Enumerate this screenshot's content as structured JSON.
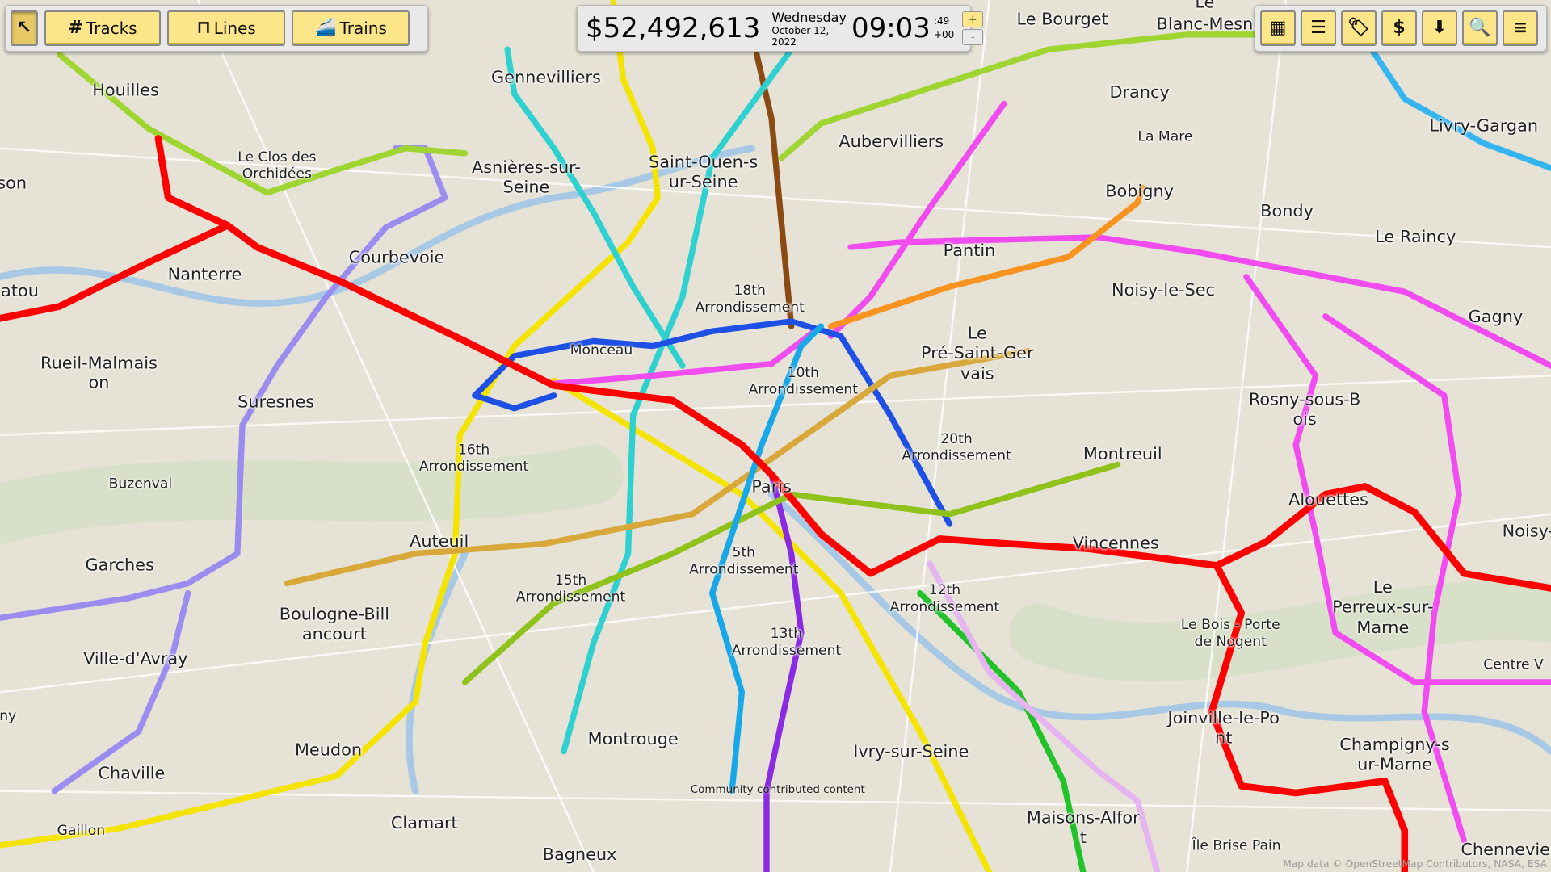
{
  "toolbar_left": {
    "info_tool": "pointer-info-icon",
    "tracks": "Tracks",
    "lines": "Lines",
    "trains": "Trains"
  },
  "status": {
    "money": "$52,492,613",
    "day": "Wednesday",
    "date": "October 12, 2022",
    "time": "09:03",
    "seconds": ":49",
    "offset": "+00",
    "speed_up": "+",
    "speed_down": "-"
  },
  "toolbar_right": [
    "map-icon",
    "sort-list-icon",
    "price-tag-icon",
    "dollar-icon",
    "steam-download-icon",
    "search-icon",
    "menu-icon"
  ],
  "map": {
    "labels": [
      "Houilles",
      "Gennevilliers",
      "Le Bourget",
      "Blanc-Mesn",
      "Drancy",
      "Aubervilliers",
      "Saint-Ouen-s\nur-Seine",
      "Asnières-sur-\nSeine",
      "Le Clos des\nOrchidées",
      "La Mare",
      "Livry-Gargan",
      "Bobigny",
      "Bondy",
      "Le Raincy",
      "Nanterre",
      "Courbevoie",
      "Pantin",
      "Noisy-le-Sec",
      "Gagny",
      "18th\nArrondissement",
      "Monceau",
      "Le\nPré-Saint-Ger\nvais",
      "10th\nArrondissement",
      "Rueil-Malmais\non",
      "Suresnes",
      "Rosny-sous-B\nois",
      "20th\nArrondissement",
      "16th\nArrondissement",
      "Paris",
      "Montreuil",
      "Buzenval",
      "Auteuil",
      "Vincennes",
      "Alouettes",
      "5th\nArrondissement",
      "Garches",
      "15th\nArrondissement",
      "12th\nArrondissement",
      "Boulogne-Bill\nancourt",
      "Le\nPerreux-sur-\nMarne",
      "Le Bois - Porte\nde Nogent",
      "13th\nArrondissement",
      "Ville-d'Avray",
      "Centre V",
      "Joinville-le-Po\nnt",
      "Montrouge",
      "Ivry-sur-Seine",
      "Champigny-s\nur-Marne",
      "Meudon",
      "Chaville",
      "Clamart",
      "Maisons-Alfor\nt",
      "Île Brise Pain",
      "Bagneux",
      "Gaillon",
      "Chennevie",
      "Noisy-",
      "atou",
      "son",
      "ny",
      "Le"
    ],
    "community": "Community contributed content",
    "attribution": "Map data © OpenStreetMap Contributors, NASA, ESA"
  },
  "colors": {
    "button": "#fde589",
    "panel": "#e9e9e9",
    "map_bg": "#e6e2d6"
  }
}
